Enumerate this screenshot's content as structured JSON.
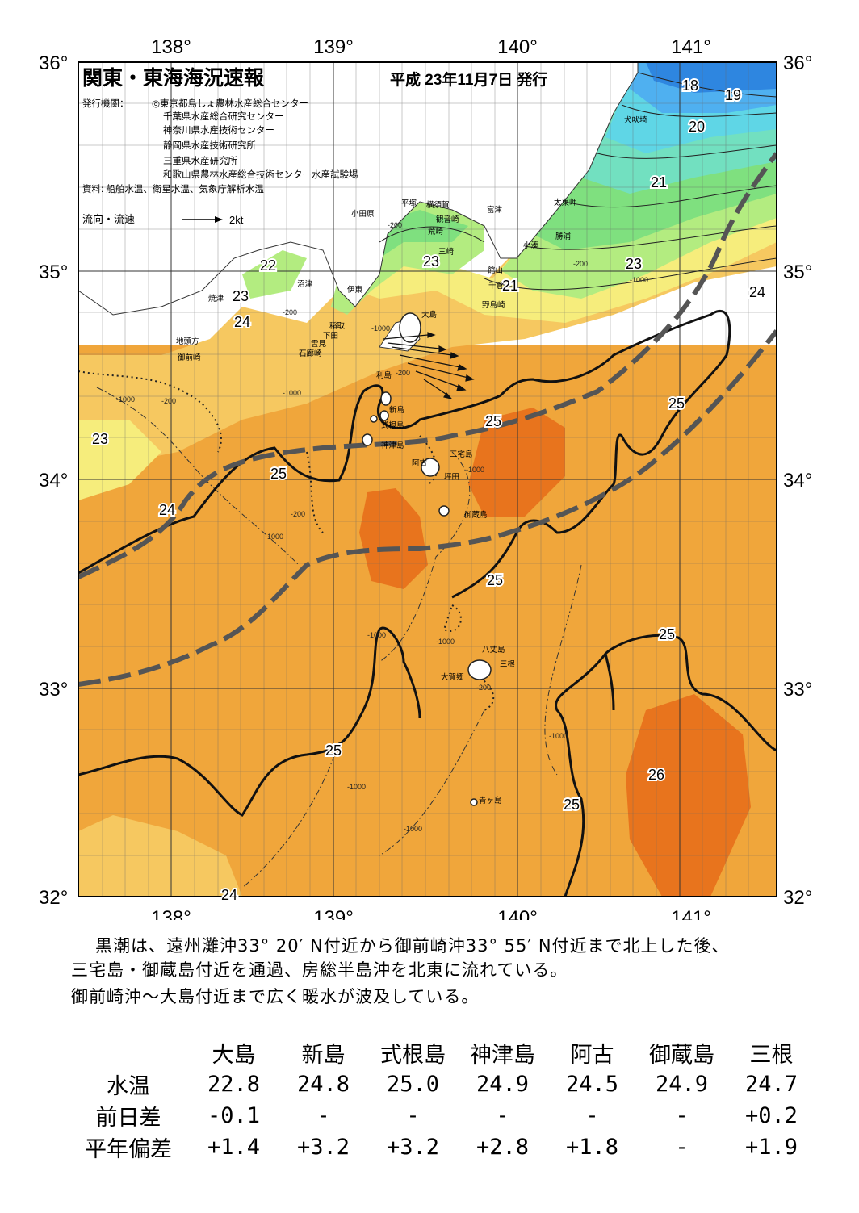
{
  "title": "関東・東海海況速報",
  "date": "平成 23年11月7日 発行",
  "publisher_label": "発行機関：",
  "publishers": [
    "◎東京都島しょ農林水産総合センター",
    "千葉県水産総合研究センター",
    "神奈川県水産技術センター",
    "静岡県水産技術研究所",
    "三重県水産研究所",
    "和歌山県農林水産総合技術センター水産試験場"
  ],
  "source": "資料: 船舶水温、衛星水温、気象庁解析水温",
  "current_legend": {
    "label": "流向・流速",
    "unit": "2kt"
  },
  "axes": {
    "lon_ticks": [
      "138°",
      "139°",
      "140°",
      "141°"
    ],
    "lat_ticks": [
      "36°",
      "35°",
      "34°",
      "33°",
      "32°"
    ]
  },
  "colors": {
    "deep_blue": "#2e86e0",
    "blue": "#4fb0f0",
    "cyan": "#5fd6e6",
    "aqua": "#72e0c0",
    "green": "#7fe07f",
    "light_green": "#b3ec80",
    "yellow": "#f6ed7c",
    "light_orange": "#f6c860",
    "orange": "#f0a63b",
    "dark_orange": "#e8741d",
    "kuroshio_axis": "#555555"
  },
  "isotherm_labels": [
    "18",
    "19",
    "20",
    "21",
    "22",
    "23",
    "24",
    "25",
    "26"
  ],
  "depth_labels": [
    "-200",
    "-1000"
  ],
  "place_names": {
    "inubosaki": "犬吠埼",
    "taitomisaki": "太東岬",
    "katsuura": "勝浦",
    "kominato": "小湊",
    "tomiura": "富津",
    "kannonzaki": "観音崎",
    "yokosuka": "横須賀",
    "hiratsuka": "平塚",
    "odawara": "小田原",
    "arasaki": "荒崎",
    "misaki": "三崎",
    "tateyama": "館山",
    "chikura": "千倉",
    "nojimazaki": "野島崎",
    "numazu": "沼津",
    "ito": "伊東",
    "yaizu": "焼津",
    "inatori": "稲取",
    "shimoda": "下田",
    "mikomoto": "雲見",
    "irozaki": "石廊崎",
    "jitokata": "地頭方",
    "omaezaki": "御前崎",
    "oshima": "大島",
    "toshima": "利島",
    "niijima": "新島",
    "shikinejima": "式根島",
    "kozushima": "神津島",
    "ako": "阿古",
    "miyakejima": "三宅島",
    "tsubota": "坪田",
    "mikurajima": "御蔵島",
    "hachijojima": "八丈島",
    "sanne": "三根",
    "okago": "大賀郷",
    "aogashima": "青ヶ島"
  },
  "narrative": [
    "黒潮は、遠州灘沖33° 20′ N付近から御前崎沖33° 55′ N付近まで北上した後、",
    "三宅島・御蔵島付近を通過、房総半島沖を北東に流れている。",
    "御前崎沖～大島付近まで広く暖水が波及している。"
  ],
  "table": {
    "stations": [
      "大島",
      "新島",
      "式根島",
      "神津島",
      "阿古",
      "御蔵島",
      "三根"
    ],
    "rows": [
      {
        "label": "水温",
        "values": [
          "22.8",
          "24.8",
          "25.0",
          "24.9",
          "24.5",
          "24.9",
          "24.7"
        ]
      },
      {
        "label": "前日差",
        "values": [
          "-0.1",
          "-",
          "-",
          "-",
          "-",
          "-",
          "+0.2"
        ]
      },
      {
        "label": "平年偏差",
        "values": [
          "+1.4",
          "+3.2",
          "+3.2",
          "+2.8",
          "+1.8",
          "-",
          "+1.9"
        ]
      }
    ]
  }
}
